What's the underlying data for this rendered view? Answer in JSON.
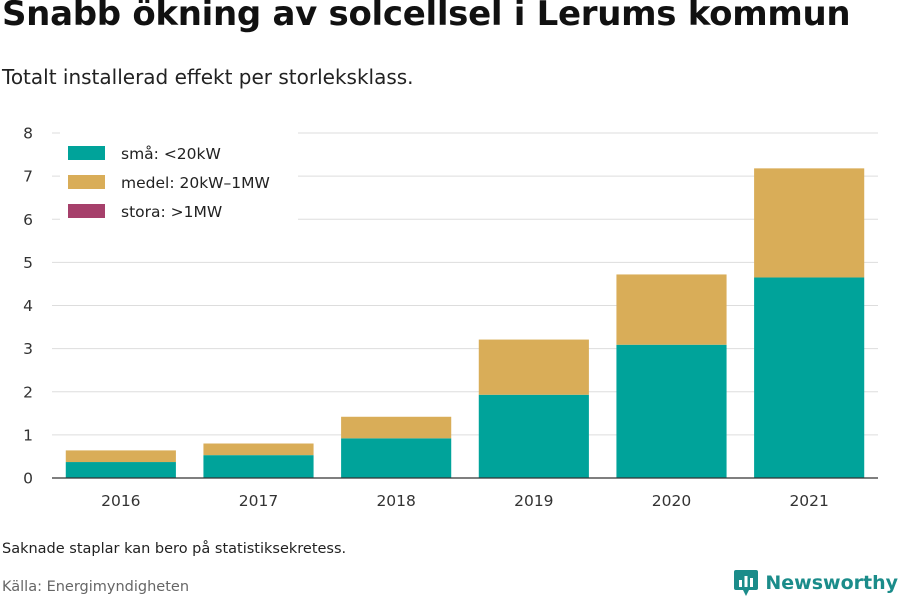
{
  "title": "Snabb ökning av solcellsel i Lerums kommun",
  "subtitle": "Totalt installerad effekt per storleksklass.",
  "note": "Saknade staplar kan bero på statistiksekretess.",
  "source": "Källa: Energimyndigheten",
  "brand": {
    "name": "Newsworthy",
    "icon": "newsworthy-logo-icon",
    "color": "#1b8c8a"
  },
  "chart_data": {
    "type": "bar",
    "stacked": true,
    "categories": [
      "2016",
      "2017",
      "2018",
      "2019",
      "2020",
      "2021"
    ],
    "series": [
      {
        "name": "små: <20kW",
        "color": "#00a39a",
        "values": [
          0.37,
          0.53,
          0.92,
          1.93,
          3.09,
          4.65
        ]
      },
      {
        "name": "medel: 20kW–1MW",
        "color": "#d9ad58",
        "values": [
          0.27,
          0.27,
          0.5,
          1.28,
          1.63,
          2.53
        ]
      },
      {
        "name": "stora: >1MW",
        "color": "#a6406b",
        "values": [
          0,
          0,
          0,
          0,
          0,
          0
        ]
      }
    ],
    "ylim": [
      0,
      8
    ],
    "yticks": [
      0,
      1,
      2,
      3,
      4,
      5,
      6,
      7,
      8
    ],
    "xlabel": "",
    "ylabel": "",
    "grid": true,
    "legend_position": "top-left"
  }
}
